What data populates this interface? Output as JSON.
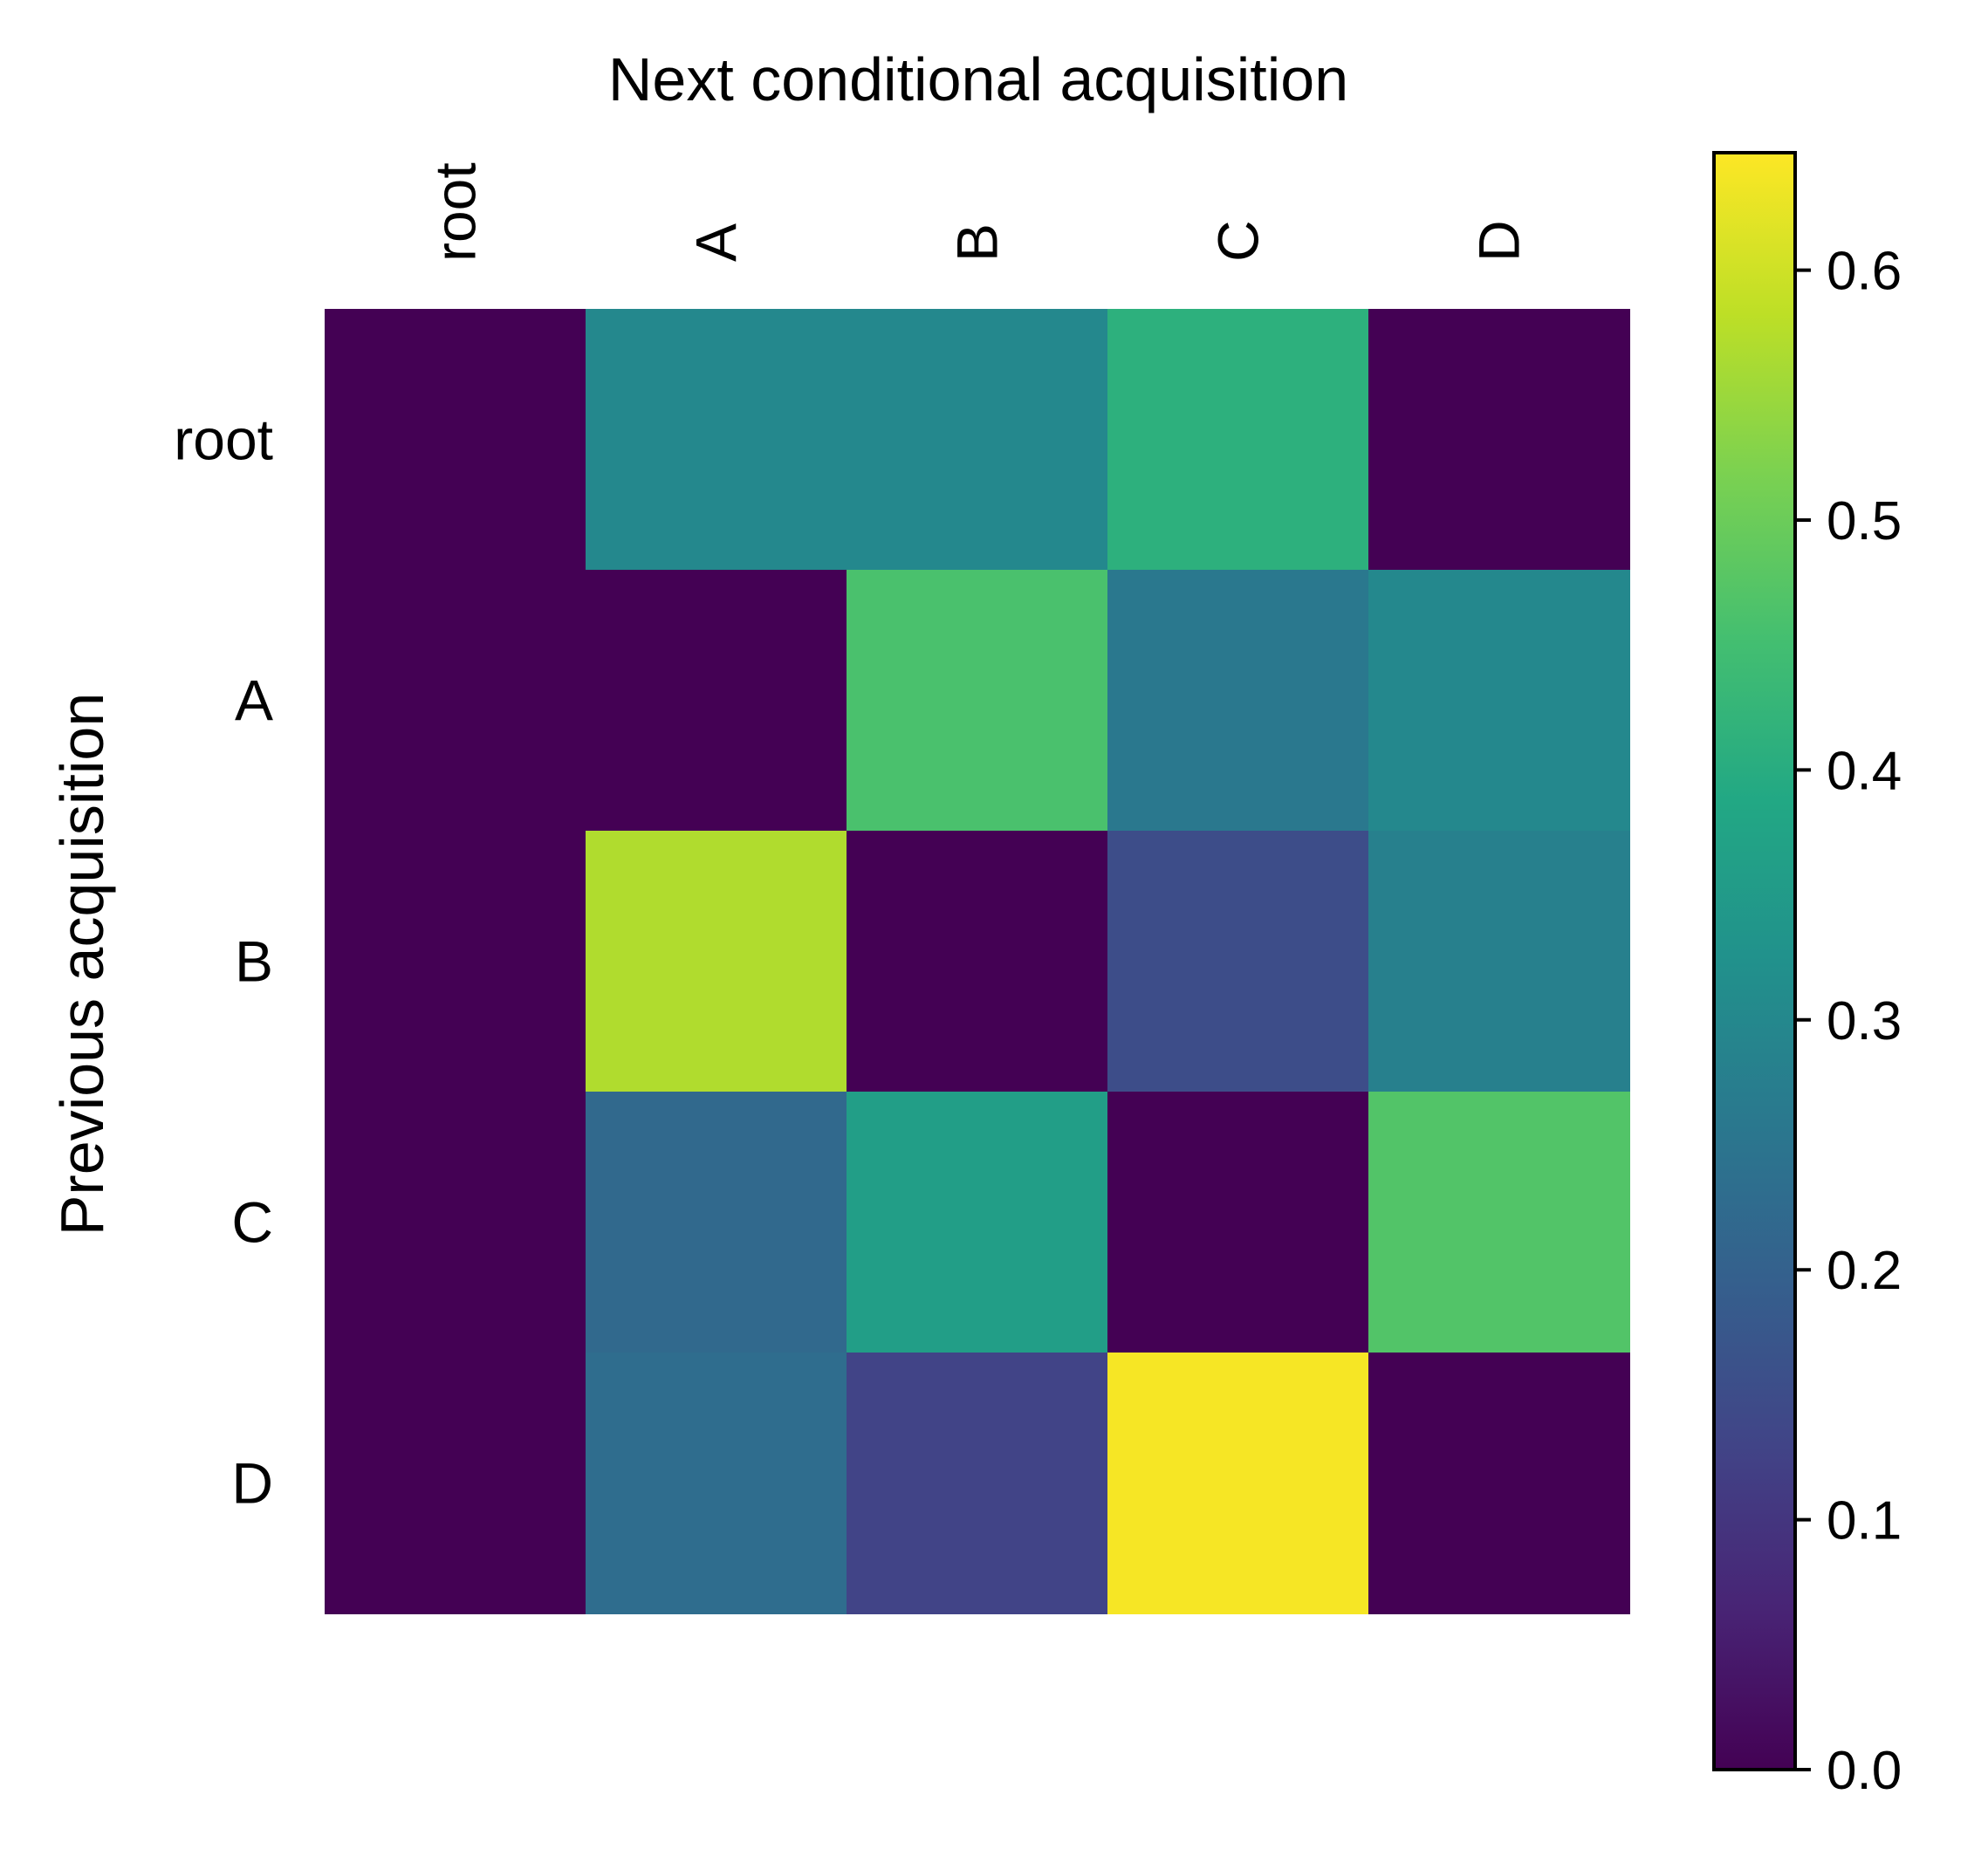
{
  "chart_data": {
    "type": "heatmap",
    "title": "Next conditional acquisition",
    "xlabel": "",
    "ylabel": "Previous acquisition",
    "x_categories": [
      "root",
      "A",
      "B",
      "C",
      "D"
    ],
    "y_categories": [
      "root",
      "A",
      "B",
      "C",
      "D"
    ],
    "values": [
      [
        0.0,
        0.3,
        0.3,
        0.41,
        0.0
      ],
      [
        0.0,
        0.0,
        0.46,
        0.26,
        0.3
      ],
      [
        0.0,
        0.57,
        0.0,
        0.15,
        0.28
      ],
      [
        0.0,
        0.22,
        0.36,
        0.0,
        0.47
      ],
      [
        0.0,
        0.23,
        0.13,
        0.64,
        0.0
      ]
    ],
    "colormap": "viridis",
    "colorbar": {
      "vmin": 0.0,
      "vmax": 0.647,
      "ticks": [
        0.0,
        0.1,
        0.2,
        0.3,
        0.4,
        0.5,
        0.6
      ],
      "tick_labels": [
        "0.0",
        "0.1",
        "0.2",
        "0.3",
        "0.4",
        "0.5",
        "0.6"
      ],
      "placement": "right"
    },
    "x_tick_position": "top",
    "x_tick_rotation": "vertical",
    "grid": false
  }
}
